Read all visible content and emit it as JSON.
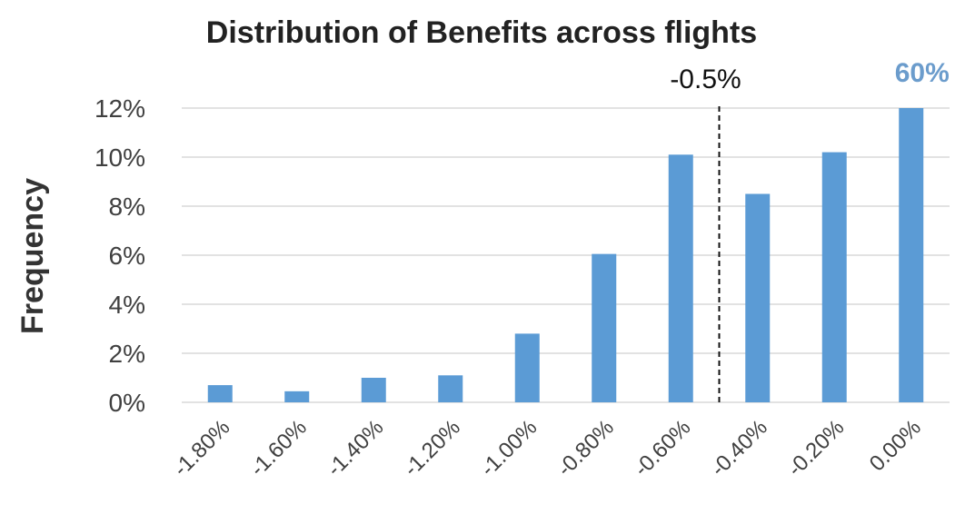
{
  "chart_data": {
    "type": "bar",
    "title": "Distribution of Benefits across flights",
    "xlabel": "",
    "ylabel": "Frequency",
    "categories": [
      "-1.80%",
      "-1.60%",
      "-1.40%",
      "-1.20%",
      "-1.00%",
      "-0.80%",
      "-0.60%",
      "-0.40%",
      "-0.20%",
      "0.00%"
    ],
    "values": [
      0.7,
      0.45,
      1.0,
      1.1,
      2.8,
      6.05,
      10.1,
      8.5,
      10.2,
      12.0
    ],
    "ylim": [
      0,
      12
    ],
    "yticks": [
      "0%",
      "2%",
      "4%",
      "6%",
      "8%",
      "10%",
      "12%"
    ],
    "grid": true,
    "bar_color": "#5b9bd5",
    "annotations": {
      "threshold_label": "-0.5%",
      "threshold_x": -0.5,
      "top_bar_callout": "60%",
      "callout_color": "#6b9ccc"
    }
  }
}
